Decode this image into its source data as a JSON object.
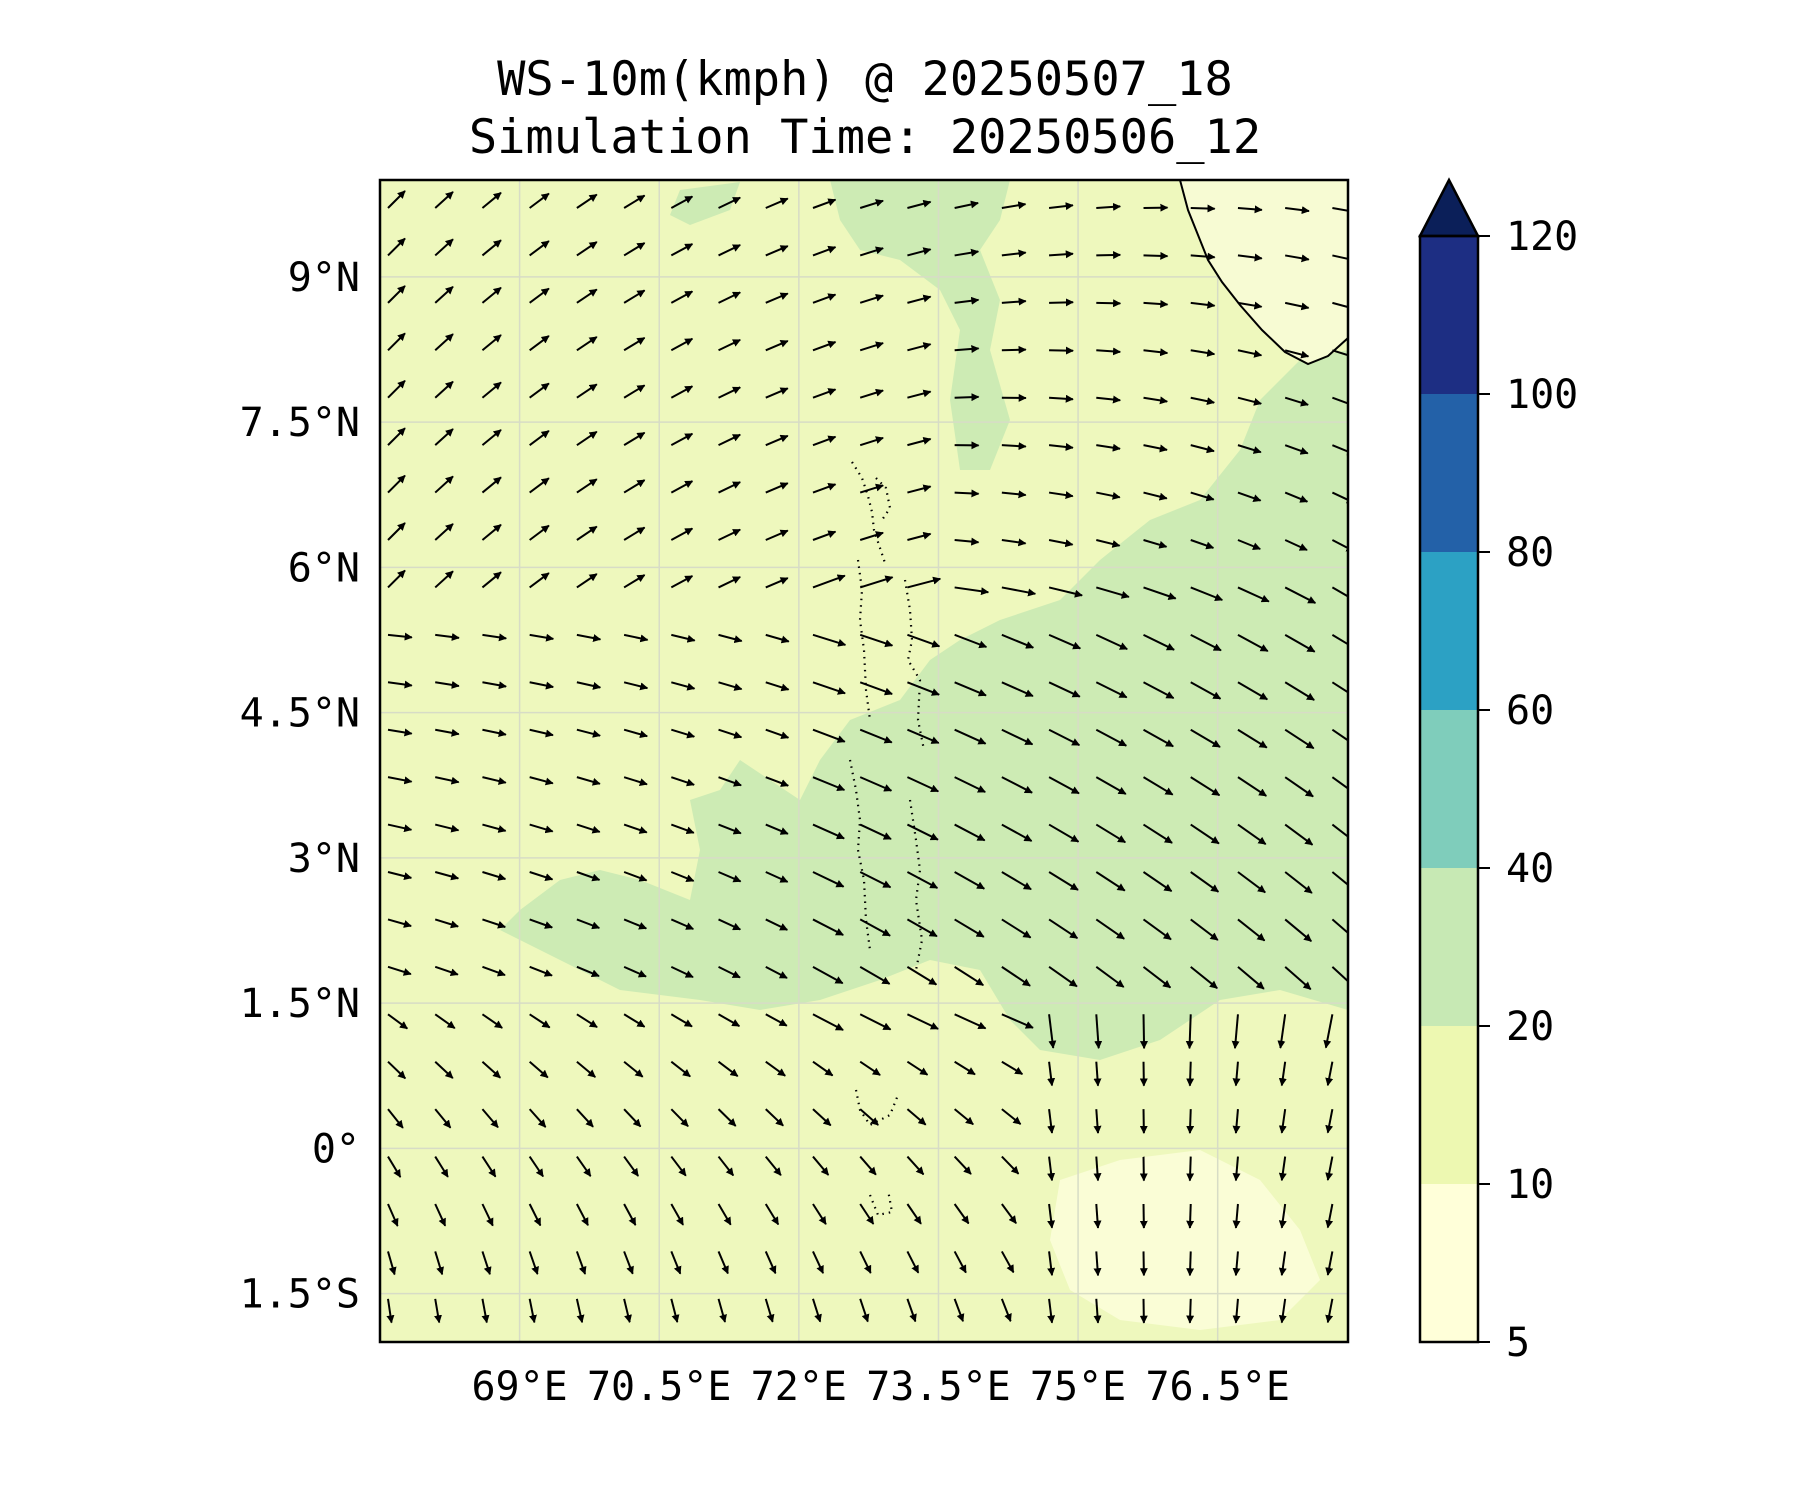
{
  "title": {
    "line1": "WS-10m(kmph) @ 20250507_18",
    "line2": "Simulation Time: 20250506_12"
  },
  "map": {
    "lon_range": [
      67.5,
      77.9
    ],
    "lat_range": [
      -2.0,
      10.0
    ],
    "lat_ticks": [
      {
        "value": 9,
        "label": "9°N"
      },
      {
        "value": 7.5,
        "label": "7.5°N"
      },
      {
        "value": 6,
        "label": "6°N"
      },
      {
        "value": 4.5,
        "label": "4.5°N"
      },
      {
        "value": 3,
        "label": "3°N"
      },
      {
        "value": 1.5,
        "label": "1.5°N"
      },
      {
        "value": 0,
        "label": "0°"
      },
      {
        "value": -1.5,
        "label": "1.5°S"
      }
    ],
    "lon_ticks": [
      {
        "value": 69,
        "label": "69°E"
      },
      {
        "value": 70.5,
        "label": "70.5°E"
      },
      {
        "value": 72,
        "label": "72°E"
      },
      {
        "value": 73.5,
        "label": "73.5°E"
      },
      {
        "value": 75,
        "label": "75°E"
      },
      {
        "value": 76.5,
        "label": "76.5°E"
      }
    ],
    "gridlines": true,
    "field_colors": {
      "base": "#eef8bd",
      "band_20_40": "#cdebb4",
      "band_5_10": "#fafdd6"
    }
  },
  "colorbar": {
    "levels": [
      5,
      10,
      20,
      40,
      60,
      80,
      100,
      120
    ],
    "colors": [
      "#ffffd9",
      "#edf8b1",
      "#c7e9b4",
      "#7fcdbb",
      "#2ca1c4",
      "#2361a8",
      "#1d2e83"
    ],
    "extend_color": "#0b1f59",
    "extend": "max",
    "labels": [
      "5",
      "10",
      "20",
      "40",
      "60",
      "80",
      "100",
      "120"
    ]
  }
}
